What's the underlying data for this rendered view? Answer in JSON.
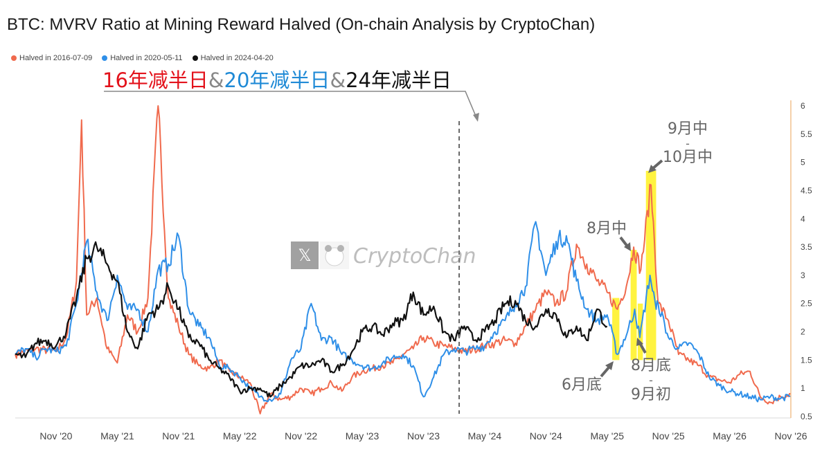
{
  "title": "BTC: MVRV Ratio at Mining Reward Halved (On-chain Analysis by CryptoChan)",
  "watermark": {
    "brand": "CryptoChan",
    "x_icon": "x-logo-icon",
    "panda_icon": "panda-avatar-icon"
  },
  "colors": {
    "s2016": "#f06a4d",
    "s2020": "#2f8fe8",
    "s2024": "#111111",
    "highlight": "#ffef00",
    "axis_right": "#f2c08e"
  },
  "headline": {
    "part1": "16年减半日",
    "amp1": "&",
    "part2": "20年减半日",
    "amp2": "&",
    "part3": "24年减半日"
  },
  "annotations": {
    "sep_oct_top": "9月中",
    "sep_oct_dash": "-",
    "sep_oct_bottom": "10月中",
    "aug_mid": "8月中",
    "jun_end": "6月底",
    "aug_end_top": "8月底",
    "aug_end_dash": "-",
    "aug_end_bottom": "9月初"
  },
  "chart_data": {
    "type": "line",
    "title": "BTC: MVRV Ratio at Mining Reward Halved (On-chain Analysis by CryptoChan)",
    "xlabel": "",
    "ylabel": "",
    "x_ticks": [
      "Nov '20",
      "May '21",
      "Nov '21",
      "May '22",
      "Nov '22",
      "May '23",
      "Nov '23",
      "May '24",
      "Nov '24",
      "May '25",
      "Nov '25",
      "May '26",
      "Nov '26"
    ],
    "y_ticks": [
      "6",
      "5.5",
      "5",
      "4.5",
      "4",
      "3.5",
      "3",
      "2.5",
      "2",
      "1.5",
      "1",
      "0.5"
    ],
    "ylim": [
      0.5,
      6
    ],
    "y_axis_side": "right",
    "grid": false,
    "legend_position": "top-left",
    "x_range_months": [
      0,
      76
    ],
    "vertical_marker": {
      "x": 43.5,
      "label_ref": "halving date 2024-04-20"
    },
    "highlight_spans": [
      {
        "x0": 58.5,
        "x1": 59.2,
        "note": "6月底"
      },
      {
        "x0": 60.3,
        "x1": 60.9,
        "note": "8月中"
      },
      {
        "x0": 61.0,
        "x1": 61.5,
        "note": "8月底-9月初"
      },
      {
        "x0": 61.8,
        "x1": 62.8,
        "note": "9月中-10月中"
      }
    ],
    "series": [
      {
        "name": "Halved in 2016-07-09",
        "color": "#f06a4d",
        "points": [
          [
            0,
            1.6
          ],
          [
            2,
            1.7
          ],
          [
            4,
            1.65
          ],
          [
            5,
            1.9
          ],
          [
            6,
            2.9
          ],
          [
            6.5,
            5.75
          ],
          [
            7,
            2.3
          ],
          [
            8,
            2.6
          ],
          [
            9,
            1.7
          ],
          [
            10,
            1.45
          ],
          [
            11,
            2.3
          ],
          [
            12,
            2.0
          ],
          [
            13,
            2.6
          ],
          [
            14,
            6.0
          ],
          [
            15,
            2.6
          ],
          [
            16,
            2.1
          ],
          [
            17,
            1.6
          ],
          [
            18,
            1.4
          ],
          [
            19,
            1.35
          ],
          [
            20,
            1.5
          ],
          [
            21,
            1.3
          ],
          [
            22,
            1.2
          ],
          [
            23,
            1.1
          ],
          [
            24,
            0.55
          ],
          [
            25,
            0.9
          ],
          [
            26,
            0.8
          ],
          [
            27,
            0.85
          ],
          [
            28,
            1.0
          ],
          [
            29,
            0.9
          ],
          [
            30,
            1.0
          ],
          [
            31,
            1.1
          ],
          [
            32,
            0.95
          ],
          [
            33,
            1.2
          ],
          [
            34,
            1.3
          ],
          [
            35,
            1.35
          ],
          [
            36,
            1.4
          ],
          [
            37,
            1.45
          ],
          [
            38,
            1.6
          ],
          [
            39,
            1.7
          ],
          [
            40,
            1.9
          ],
          [
            41,
            1.8
          ],
          [
            42,
            1.75
          ],
          [
            43,
            1.7
          ],
          [
            44,
            1.65
          ],
          [
            45,
            1.7
          ],
          [
            46,
            1.75
          ],
          [
            47,
            1.8
          ],
          [
            48,
            1.85
          ],
          [
            49,
            1.8
          ],
          [
            50,
            2.1
          ],
          [
            51,
            2.4
          ],
          [
            52,
            2.7
          ],
          [
            53,
            2.5
          ],
          [
            54,
            2.7
          ],
          [
            55,
            3.55
          ],
          [
            56,
            3.2
          ],
          [
            57,
            2.9
          ],
          [
            58,
            2.7
          ],
          [
            59,
            2.4
          ],
          [
            60,
            2.9
          ],
          [
            60.6,
            3.5
          ],
          [
            61.3,
            3.1
          ],
          [
            62.3,
            4.6
          ],
          [
            63,
            2.5
          ],
          [
            64,
            2.2
          ],
          [
            65,
            1.6
          ],
          [
            66,
            1.5
          ],
          [
            67,
            1.4
          ],
          [
            68,
            1.2
          ],
          [
            69,
            1.15
          ],
          [
            70,
            1.1
          ],
          [
            71,
            1.25
          ],
          [
            72,
            1.3
          ],
          [
            73,
            0.85
          ],
          [
            74,
            0.75
          ],
          [
            75,
            0.85
          ],
          [
            76,
            0.9
          ]
        ]
      },
      {
        "name": "Halved in 2020-05-11",
        "color": "#2f8fe8",
        "points": [
          [
            0,
            1.6
          ],
          [
            1,
            1.7
          ],
          [
            2,
            1.55
          ],
          [
            3,
            1.7
          ],
          [
            4,
            1.65
          ],
          [
            5,
            1.75
          ],
          [
            6,
            2.5
          ],
          [
            7,
            3.6
          ],
          [
            8,
            2.7
          ],
          [
            9,
            2.2
          ],
          [
            10,
            3.0
          ],
          [
            11,
            2.4
          ],
          [
            12,
            2.4
          ],
          [
            13,
            2.0
          ],
          [
            14,
            3.1
          ],
          [
            15,
            3.2
          ],
          [
            16,
            3.7
          ],
          [
            17,
            2.4
          ],
          [
            18,
            2.1
          ],
          [
            19,
            1.9
          ],
          [
            20,
            1.4
          ],
          [
            21,
            1.35
          ],
          [
            22,
            1.2
          ],
          [
            23,
            1.0
          ],
          [
            24,
            0.85
          ],
          [
            25,
            0.8
          ],
          [
            26,
            0.9
          ],
          [
            27,
            1.5
          ],
          [
            28,
            1.7
          ],
          [
            29,
            2.5
          ],
          [
            30,
            1.85
          ],
          [
            31,
            1.9
          ],
          [
            32,
            1.6
          ],
          [
            33,
            1.5
          ],
          [
            34,
            1.4
          ],
          [
            35,
            1.35
          ],
          [
            36,
            1.45
          ],
          [
            37,
            1.55
          ],
          [
            38,
            1.6
          ],
          [
            39,
            1.4
          ],
          [
            40,
            0.85
          ],
          [
            41,
            1.2
          ],
          [
            42,
            1.6
          ],
          [
            43,
            1.7
          ],
          [
            44,
            1.65
          ],
          [
            45,
            1.7
          ],
          [
            46,
            1.75
          ],
          [
            47,
            2.0
          ],
          [
            48,
            2.2
          ],
          [
            49,
            2.5
          ],
          [
            50,
            2.8
          ],
          [
            51,
            3.95
          ],
          [
            52,
            3.0
          ],
          [
            53,
            3.6
          ],
          [
            54,
            3.7
          ],
          [
            55,
            2.9
          ],
          [
            56,
            2.4
          ],
          [
            57,
            2.2
          ],
          [
            58,
            2.3
          ],
          [
            59,
            1.6
          ],
          [
            60,
            2.0
          ],
          [
            60.7,
            2.4
          ],
          [
            61.2,
            1.9
          ],
          [
            62.2,
            3.0
          ],
          [
            62.8,
            2.4
          ],
          [
            63,
            2.5
          ],
          [
            64,
            1.9
          ],
          [
            65,
            1.7
          ],
          [
            66,
            1.8
          ],
          [
            67,
            1.6
          ],
          [
            68,
            1.2
          ],
          [
            69,
            1.05
          ],
          [
            70,
            0.95
          ],
          [
            71,
            0.9
          ],
          [
            72,
            0.85
          ],
          [
            73,
            0.8
          ],
          [
            74,
            0.85
          ],
          [
            75,
            0.82
          ],
          [
            76,
            0.86
          ]
        ]
      },
      {
        "name": "Halved in 2024-04-20",
        "color": "#111111",
        "points": [
          [
            0,
            1.6
          ],
          [
            1,
            1.55
          ],
          [
            2,
            1.8
          ],
          [
            3,
            1.85
          ],
          [
            4,
            1.75
          ],
          [
            5,
            2.0
          ],
          [
            6,
            2.6
          ],
          [
            7,
            3.3
          ],
          [
            8,
            3.5
          ],
          [
            9,
            3.2
          ],
          [
            10,
            2.9
          ],
          [
            11,
            2.0
          ],
          [
            12,
            1.7
          ],
          [
            13,
            2.3
          ],
          [
            14,
            2.4
          ],
          [
            15,
            2.8
          ],
          [
            16,
            2.4
          ],
          [
            17,
            1.9
          ],
          [
            18,
            1.8
          ],
          [
            19,
            1.5
          ],
          [
            20,
            1.35
          ],
          [
            21,
            1.2
          ],
          [
            22,
            0.95
          ],
          [
            23,
            1.0
          ],
          [
            24,
            1.0
          ],
          [
            25,
            0.85
          ],
          [
            26,
            1.05
          ],
          [
            27,
            1.2
          ],
          [
            28,
            1.4
          ],
          [
            29,
            1.4
          ],
          [
            30,
            1.5
          ],
          [
            31,
            1.3
          ],
          [
            32,
            1.4
          ],
          [
            33,
            1.65
          ],
          [
            34,
            2.0
          ],
          [
            35,
            2.1
          ],
          [
            36,
            1.95
          ],
          [
            37,
            2.15
          ],
          [
            38,
            2.2
          ],
          [
            39,
            2.7
          ],
          [
            40,
            2.3
          ],
          [
            41,
            2.45
          ],
          [
            42,
            2.0
          ],
          [
            43,
            1.85
          ],
          [
            44,
            2.1
          ],
          [
            45,
            1.85
          ],
          [
            46,
            2.0
          ],
          [
            47,
            2.2
          ],
          [
            48,
            2.5
          ],
          [
            49,
            2.55
          ],
          [
            50,
            2.2
          ],
          [
            51,
            2.1
          ],
          [
            52,
            2.4
          ],
          [
            53,
            2.3
          ],
          [
            54,
            1.9
          ],
          [
            55,
            2.1
          ],
          [
            56,
            1.85
          ],
          [
            57,
            2.4
          ],
          [
            58,
            2.1
          ]
        ]
      }
    ]
  }
}
